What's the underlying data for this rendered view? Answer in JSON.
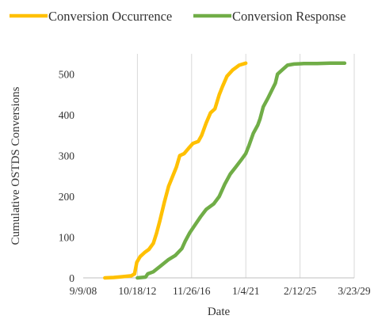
{
  "chart_data": {
    "type": "line",
    "title": "",
    "xlabel": "Date",
    "ylabel": "Cumulative OSTDS Conversions",
    "x_axis_kind": "date",
    "xlim": [
      "2008-09-09",
      "2029-03-23"
    ],
    "ylim": [
      0,
      550
    ],
    "x_ticks": [
      {
        "date": "2008-09-09",
        "label": "9/9/08"
      },
      {
        "date": "2012-10-18",
        "label": "10/18/12"
      },
      {
        "date": "2016-11-26",
        "label": "11/26/16"
      },
      {
        "date": "2021-01-04",
        "label": "1/4/21"
      },
      {
        "date": "2025-02-12",
        "label": "2/12/25"
      },
      {
        "date": "2029-03-23",
        "label": "3/23/29"
      }
    ],
    "y_ticks": [
      0,
      100,
      200,
      300,
      400,
      500
    ],
    "grid": {
      "vertical": true,
      "horizontal": false
    },
    "legend_position": "top",
    "series": [
      {
        "name": "Conversion Occurrence",
        "color": "#FFC000",
        "points": [
          [
            "2010-05-01",
            0
          ],
          [
            "2011-01-01",
            1
          ],
          [
            "2011-09-01",
            3
          ],
          [
            "2012-05-01",
            5
          ],
          [
            "2012-08-01",
            10
          ],
          [
            "2012-10-01",
            38
          ],
          [
            "2012-11-15",
            45
          ],
          [
            "2013-01-01",
            52
          ],
          [
            "2013-05-01",
            62
          ],
          [
            "2013-09-01",
            70
          ],
          [
            "2014-01-01",
            85
          ],
          [
            "2014-04-01",
            110
          ],
          [
            "2014-07-01",
            140
          ],
          [
            "2014-11-01",
            185
          ],
          [
            "2015-03-01",
            225
          ],
          [
            "2015-06-01",
            245
          ],
          [
            "2015-10-01",
            272
          ],
          [
            "2016-01-01",
            300
          ],
          [
            "2016-05-01",
            305
          ],
          [
            "2016-09-01",
            318
          ],
          [
            "2017-01-01",
            330
          ],
          [
            "2017-06-01",
            335
          ],
          [
            "2017-09-01",
            350
          ],
          [
            "2018-01-01",
            380
          ],
          [
            "2018-05-01",
            405
          ],
          [
            "2018-09-01",
            415
          ],
          [
            "2019-01-01",
            450
          ],
          [
            "2019-04-01",
            470
          ],
          [
            "2019-08-01",
            495
          ],
          [
            "2020-01-01",
            510
          ],
          [
            "2020-07-01",
            522
          ],
          [
            "2021-01-01",
            527
          ]
        ]
      },
      {
        "name": "Conversion Response",
        "color": "#70AD47",
        "points": [
          [
            "2012-10-18",
            0
          ],
          [
            "2013-06-01",
            2
          ],
          [
            "2013-08-01",
            10
          ],
          [
            "2014-01-01",
            15
          ],
          [
            "2014-08-01",
            30
          ],
          [
            "2015-03-01",
            45
          ],
          [
            "2015-09-01",
            55
          ],
          [
            "2016-03-01",
            72
          ],
          [
            "2016-06-01",
            90
          ],
          [
            "2016-10-01",
            110
          ],
          [
            "2017-03-01",
            130
          ],
          [
            "2017-08-01",
            150
          ],
          [
            "2018-01-01",
            168
          ],
          [
            "2018-08-01",
            182
          ],
          [
            "2019-01-01",
            200
          ],
          [
            "2019-06-01",
            230
          ],
          [
            "2019-11-01",
            255
          ],
          [
            "2020-04-01",
            272
          ],
          [
            "2020-09-01",
            290
          ],
          [
            "2021-01-01",
            305
          ],
          [
            "2021-04-01",
            325
          ],
          [
            "2021-08-01",
            355
          ],
          [
            "2021-12-01",
            375
          ],
          [
            "2022-02-01",
            390
          ],
          [
            "2022-05-01",
            420
          ],
          [
            "2022-09-01",
            440
          ],
          [
            "2023-01-01",
            462
          ],
          [
            "2023-04-01",
            478
          ],
          [
            "2023-06-01",
            500
          ],
          [
            "2023-10-01",
            510
          ],
          [
            "2024-03-01",
            522
          ],
          [
            "2024-09-01",
            525
          ],
          [
            "2025-06-01",
            526
          ],
          [
            "2026-06-01",
            526
          ],
          [
            "2027-06-01",
            527
          ],
          [
            "2028-07-01",
            527
          ]
        ]
      }
    ]
  }
}
